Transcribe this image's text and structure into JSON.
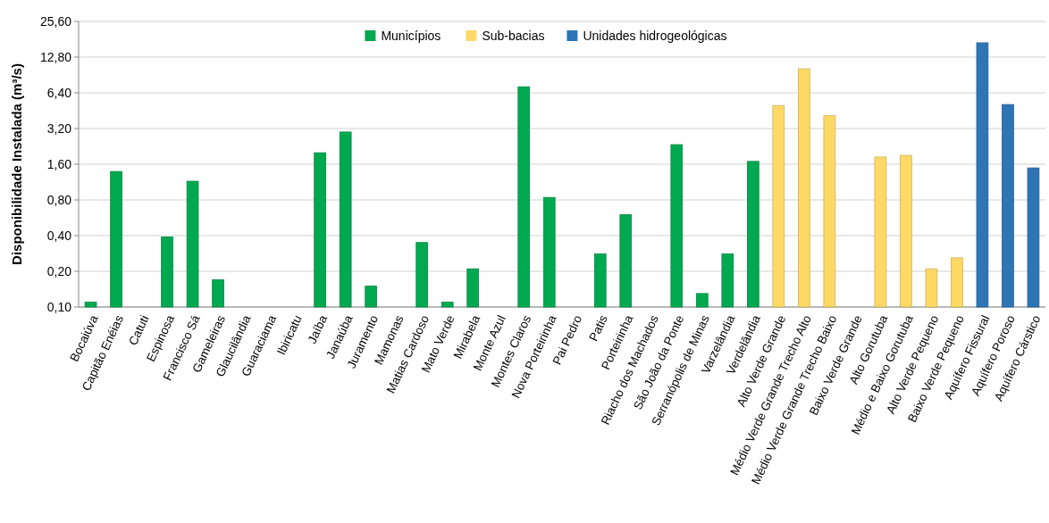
{
  "chart_data": {
    "type": "bar",
    "ylabel": "Disponibilidade Instalada (m³/s)",
    "log": "y",
    "grid": "y",
    "legend": "top",
    "ylim": [
      0.1,
      25.6
    ],
    "yticks": [
      {
        "value": 0.1,
        "label": "0,10"
      },
      {
        "value": 0.2,
        "label": "0,20"
      },
      {
        "value": 0.4,
        "label": "0,40"
      },
      {
        "value": 0.8,
        "label": "0,80"
      },
      {
        "value": 1.6,
        "label": "1,60"
      },
      {
        "value": 3.2,
        "label": "3,20"
      },
      {
        "value": 6.4,
        "label": "6,40"
      },
      {
        "value": 12.8,
        "label": "12,80"
      },
      {
        "value": 25.6,
        "label": "25,60"
      }
    ],
    "categories": [
      "Bocaiúva",
      "Capitão Enéias",
      "Catuti",
      "Espinosa",
      "Francisco Sá",
      "Gameleiras",
      "Glaucilândia",
      "Guaraciama",
      "Ibiricatu",
      "Jaíba",
      "Janaúba",
      "Juramento",
      "Mamonas",
      "Matias Cardoso",
      "Mato Verde",
      "Mirabela",
      "Monte Azul",
      "Montes Claros",
      "Nova Porteirinha",
      "Pai Pedro",
      "Patis",
      "Porteirinha",
      "Riacho dos Machados",
      "São João da Ponte",
      "Serranópolis de Minas",
      "Varzelândia",
      "Verdelândia",
      "Alto Verde Grande",
      "Médio Verde Grande Trecho Alto",
      "Médio Verde Grande Trecho Baixo",
      "Baixo Verde Grande",
      "Alto Gorutuba",
      "Médio e Baixo Gorutuba",
      "Alto Verde Pequeno",
      "Baixo Verde Pequeno",
      "Aquífero Fissural",
      "Aquífero Poroso",
      "Aquífero Cárstico"
    ],
    "series": [
      {
        "name": "Municípios",
        "color": "#00a94f",
        "values": [
          0.11,
          1.39,
          0.1,
          0.39,
          1.15,
          0.17,
          0.1,
          0.1,
          0.1,
          2.0,
          2.99,
          0.15,
          0.1,
          0.35,
          0.11,
          0.21,
          0.1,
          7.2,
          0.84,
          0.1,
          0.28,
          0.6,
          0.1,
          2.34,
          0.13,
          0.28,
          1.69,
          null,
          null,
          null,
          null,
          null,
          null,
          null,
          null,
          null,
          null,
          null
        ]
      },
      {
        "name": "Sub-bacias",
        "color": "#ffd966",
        "values": [
          null,
          null,
          null,
          null,
          null,
          null,
          null,
          null,
          null,
          null,
          null,
          null,
          null,
          null,
          null,
          null,
          null,
          null,
          null,
          null,
          null,
          null,
          null,
          null,
          null,
          null,
          null,
          5.0,
          10.2,
          4.1,
          0.1,
          1.84,
          1.9,
          0.21,
          0.26,
          null,
          null,
          null
        ]
      },
      {
        "name": "Unidades hidrogeológicas",
        "color": "#2e75b6",
        "values": [
          null,
          null,
          null,
          null,
          null,
          null,
          null,
          null,
          null,
          null,
          null,
          null,
          null,
          null,
          null,
          null,
          null,
          null,
          null,
          null,
          null,
          null,
          null,
          null,
          null,
          null,
          null,
          null,
          null,
          null,
          null,
          null,
          null,
          null,
          null,
          16.9,
          5.1,
          1.49
        ]
      }
    ]
  }
}
